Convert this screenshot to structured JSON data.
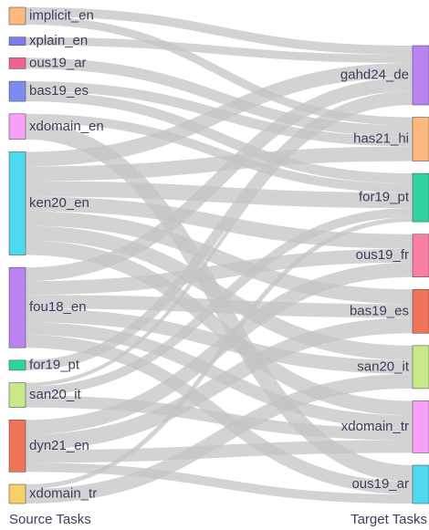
{
  "chart_data": {
    "type": "sankey",
    "source_label": "Source Tasks",
    "target_label": "Target Tasks",
    "source_nodes": [
      {
        "name": "implicit_en",
        "color": "#fdb97d"
      },
      {
        "name": "xplain_en",
        "color": "#7b7bf0"
      },
      {
        "name": "ous19_ar",
        "color": "#f06292"
      },
      {
        "name": "bas19_es",
        "color": "#7b8cf0"
      },
      {
        "name": "xdomain_en",
        "color": "#f9a0f9"
      },
      {
        "name": "ken20_en",
        "color": "#4dd9f0"
      },
      {
        "name": "fou18_en",
        "color": "#b983f0"
      },
      {
        "name": "for19_pt",
        "color": "#2ed3a0"
      },
      {
        "name": "san20_it",
        "color": "#c6e98a"
      },
      {
        "name": "dyn21_en",
        "color": "#f0735a"
      },
      {
        "name": "xdomain_tr",
        "color": "#f7d06a"
      }
    ],
    "target_nodes": [
      {
        "name": "gahd24_de",
        "color": "#b983f0"
      },
      {
        "name": "has21_hi",
        "color": "#fdb97d"
      },
      {
        "name": "for19_pt",
        "color": "#2ed3a0"
      },
      {
        "name": "ous19_fr",
        "color": "#f77fa0"
      },
      {
        "name": "bas19_es",
        "color": "#f0735a"
      },
      {
        "name": "san20_it",
        "color": "#c6e98a"
      },
      {
        "name": "xdomain_tr",
        "color": "#f9a0f9"
      },
      {
        "name": "ous19_ar",
        "color": "#4dd9f0"
      }
    ],
    "links": [
      {
        "source": "implicit_en",
        "target": "gahd24_de",
        "value": 10
      },
      {
        "source": "implicit_en",
        "target": "has21_hi",
        "value": 9
      },
      {
        "source": "xplain_en",
        "target": "gahd24_de",
        "value": 9
      },
      {
        "source": "ous19_ar",
        "target": "has21_hi",
        "value": 12
      },
      {
        "source": "bas19_es",
        "target": "has21_hi",
        "value": 11
      },
      {
        "source": "bas19_es",
        "target": "for19_pt",
        "value": 11
      },
      {
        "source": "xdomain_en",
        "target": "for19_pt",
        "value": 10
      },
      {
        "source": "xdomain_en",
        "target": "ous19_ar",
        "value": 18
      },
      {
        "source": "ken20_en",
        "target": "gahd24_de",
        "value": 16
      },
      {
        "source": "ken20_en",
        "target": "has21_hi",
        "value": 16
      },
      {
        "source": "ken20_en",
        "target": "for19_pt",
        "value": 17
      },
      {
        "source": "ken20_en",
        "target": "ous19_fr",
        "value": 16
      },
      {
        "source": "ken20_en",
        "target": "bas19_es",
        "value": 16
      },
      {
        "source": "ken20_en",
        "target": "san20_it",
        "value": 16
      },
      {
        "source": "ken20_en",
        "target": "xdomain_tr",
        "value": 16
      },
      {
        "source": "fou18_en",
        "target": "gahd24_de",
        "value": 15
      },
      {
        "source": "fou18_en",
        "target": "ous19_fr",
        "value": 15
      },
      {
        "source": "fou18_en",
        "target": "bas19_es",
        "value": 15
      },
      {
        "source": "fou18_en",
        "target": "san20_it",
        "value": 15
      },
      {
        "source": "fou18_en",
        "target": "xdomain_tr",
        "value": 14
      },
      {
        "source": "fou18_en",
        "target": "ous19_ar",
        "value": 14
      },
      {
        "source": "for19_pt",
        "target": "gahd24_de",
        "value": 11
      },
      {
        "source": "san20_it",
        "target": "gahd24_de",
        "value": 4
      },
      {
        "source": "san20_it",
        "target": "for19_pt",
        "value": 10
      },
      {
        "source": "san20_it",
        "target": "xdomain_tr",
        "value": 13
      },
      {
        "source": "dyn21_en",
        "target": "ous19_fr",
        "value": 16
      },
      {
        "source": "dyn21_en",
        "target": "bas19_es",
        "value": 17
      },
      {
        "source": "dyn21_en",
        "target": "xdomain_tr",
        "value": 14
      },
      {
        "source": "dyn21_en",
        "target": "ous19_ar",
        "value": 10
      },
      {
        "source": "xdomain_tr",
        "target": "for19_pt",
        "value": 5
      },
      {
        "source": "xdomain_tr",
        "target": "san20_it",
        "value": 16
      }
    ]
  }
}
